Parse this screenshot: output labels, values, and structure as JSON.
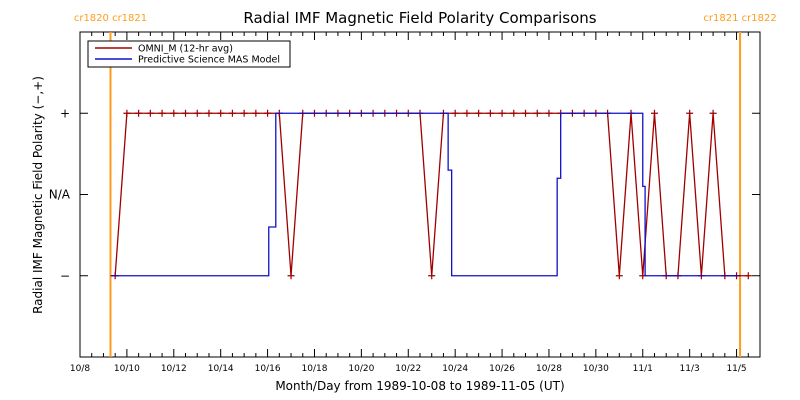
{
  "chart_data": {
    "type": "line",
    "title": "Radial IMF Magnetic Field Polarity Comparisons",
    "xlabel": "Month/Day from 1989-10-08 to 1989-11-05 (UT)",
    "ylabel": "Radial IMF Magnetic Field Polarity (−,+)",
    "x_tick_labels": [
      "10/8",
      "10/10",
      "10/12",
      "10/14",
      "10/16",
      "10/18",
      "10/20",
      "10/22",
      "10/24",
      "10/26",
      "10/28",
      "10/30",
      "11/1",
      "11/3",
      "11/5"
    ],
    "x_tick_days": [
      0,
      2,
      4,
      6,
      8,
      10,
      12,
      14,
      16,
      18,
      20,
      22,
      24,
      26,
      28
    ],
    "xlim_days": [
      0,
      29
    ],
    "y_categories": [
      {
        "label": "−",
        "value": -1
      },
      {
        "label": "N/A",
        "value": 0
      },
      {
        "label": "+",
        "value": 1
      }
    ],
    "ylim": [
      -2,
      2
    ],
    "carrington_markers": [
      {
        "day": 1.3,
        "label": "cr1820 cr1821"
      },
      {
        "day": 28.15,
        "label": "cr1821 cr1822"
      }
    ],
    "legend": {
      "position": "top-left"
    },
    "colors": {
      "omni": "#a00000",
      "mas": "#1010c8",
      "cr": "#ff9c1c"
    },
    "series": [
      {
        "name": "OMNI_M (12-hr avg)",
        "marker": "plus",
        "x": [
          1.5,
          2.0,
          2.5,
          3.0,
          3.5,
          4.0,
          4.5,
          5.0,
          5.5,
          6.0,
          6.5,
          7.0,
          7.5,
          8.0,
          8.5,
          9.0,
          9.5,
          10.0,
          10.5,
          11.0,
          11.5,
          12.0,
          12.5,
          13.0,
          13.5,
          14.0,
          14.5,
          15.0,
          15.5,
          16.0,
          16.5,
          17.0,
          17.5,
          18.0,
          18.5,
          19.0,
          19.5,
          20.0,
          20.5,
          21.0,
          21.5,
          22.0,
          22.5,
          23.0,
          23.5,
          24.0,
          24.5,
          25.0,
          25.5,
          26.0,
          26.5,
          27.0,
          27.5,
          28.0,
          28.5
        ],
        "y": [
          -1,
          1,
          1,
          1,
          1,
          1,
          1,
          1,
          1,
          1,
          1,
          1,
          1,
          1,
          1,
          -1,
          1,
          1,
          1,
          1,
          1,
          1,
          1,
          1,
          1,
          1,
          1,
          -1,
          1,
          1,
          1,
          1,
          1,
          1,
          1,
          1,
          1,
          1,
          1,
          1,
          1,
          1,
          1,
          -1,
          1,
          -1,
          1,
          -1,
          -1,
          1,
          -1,
          1,
          -1,
          -1,
          -1
        ]
      },
      {
        "name": "Predictive Science MAS Model",
        "marker": "none",
        "x": [
          1.3,
          8.05,
          8.05,
          8.35,
          8.35,
          15.7,
          15.7,
          15.85,
          15.85,
          20.35,
          20.35,
          20.5,
          20.5,
          20.7,
          20.7,
          24.0,
          24.0,
          24.1,
          24.1,
          24.25,
          24.25,
          28.15
        ],
        "y": [
          -1,
          -1,
          -0.4,
          -0.4,
          1,
          1,
          0.3,
          0.3,
          -1,
          -1,
          0.2,
          0.2,
          1,
          1,
          1,
          1,
          0.1,
          0.1,
          -1,
          -1,
          -1,
          -1
        ]
      }
    ]
  }
}
